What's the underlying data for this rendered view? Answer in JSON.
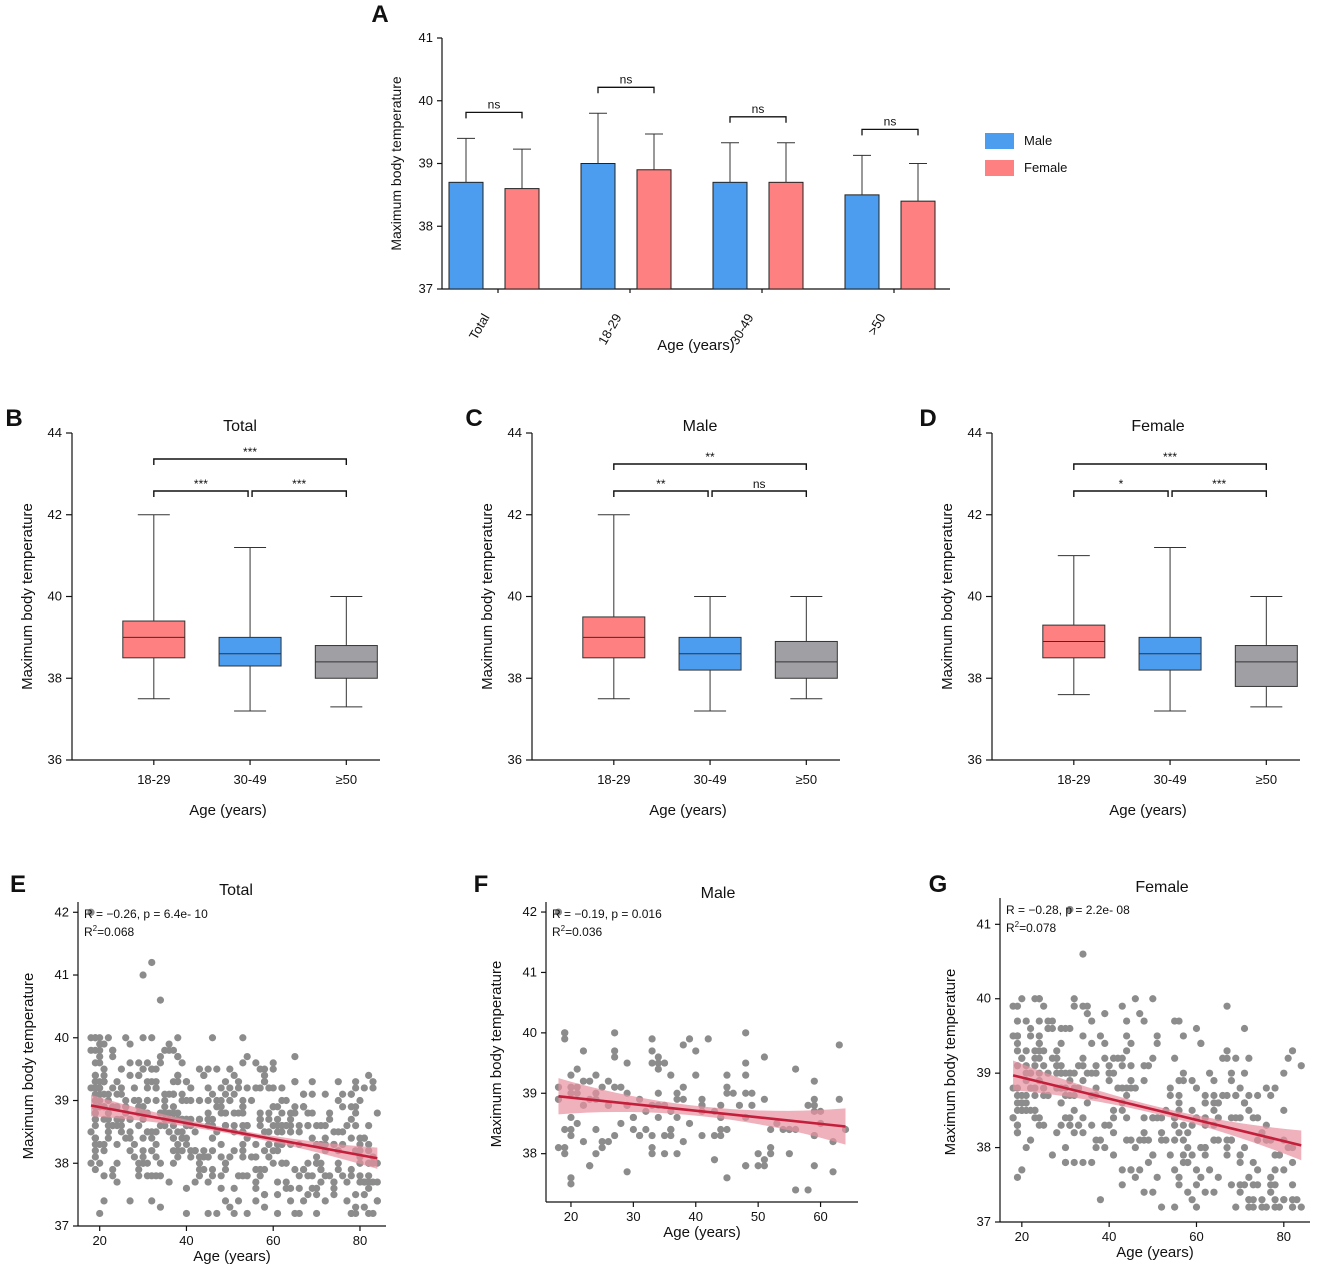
{
  "colors": {
    "male": "#4c9df0",
    "female": "#ff8080",
    "senior": "#a0a0a4",
    "point": "#8c8c8c",
    "line": "#c41e3a",
    "band": "#e8909f"
  },
  "chart_data": [
    {
      "id": "A",
      "type": "bar",
      "panel_label": "A",
      "xlabel": "Age (years)",
      "ylabel": "Maximum body temperature",
      "ylim": [
        37,
        41
      ],
      "yticks": [
        37,
        38,
        39,
        40,
        41
      ],
      "categories": [
        "Total",
        "18-29",
        "30-49",
        ">50"
      ],
      "series": [
        {
          "name": "Male",
          "values": [
            38.7,
            39.0,
            38.7,
            38.5
          ],
          "err_upper": [
            39.4,
            39.8,
            39.33,
            39.13
          ]
        },
        {
          "name": "Female",
          "values": [
            38.6,
            38.9,
            38.7,
            38.4
          ],
          "err_upper": [
            39.23,
            39.47,
            39.33,
            39.0
          ]
        }
      ],
      "significance": [
        "ns",
        "ns",
        "ns",
        "ns"
      ],
      "legend": [
        "Male",
        "Female"
      ],
      "legend_position": "right"
    },
    {
      "id": "B",
      "type": "box",
      "panel_label": "B",
      "title": "Total",
      "xlabel": "Age (years)",
      "ylabel": "Maximum body temperature",
      "ylim": [
        36,
        44
      ],
      "yticks": [
        36,
        38,
        40,
        42,
        44
      ],
      "categories": [
        "18-29",
        "30-49",
        "≥50"
      ],
      "boxes": [
        {
          "min": 37.5,
          "q1": 38.5,
          "median": 39.0,
          "q3": 39.4,
          "max": 42.0
        },
        {
          "min": 37.2,
          "q1": 38.3,
          "median": 38.6,
          "q3": 39.0,
          "max": 41.2
        },
        {
          "min": 37.3,
          "q1": 38.0,
          "median": 38.4,
          "q3": 38.8,
          "max": 40.0
        }
      ],
      "comparisons": [
        {
          "pair": "18-29 vs ≥50",
          "label": "***"
        },
        {
          "pair": "18-29 vs 30-49",
          "label": "***"
        },
        {
          "pair": "30-49 vs ≥50",
          "label": "***"
        }
      ]
    },
    {
      "id": "C",
      "type": "box",
      "panel_label": "C",
      "title": "Male",
      "xlabel": "Age (years)",
      "ylabel": "Maximum body temperature",
      "ylim": [
        36,
        44
      ],
      "yticks": [
        36,
        38,
        40,
        42,
        44
      ],
      "categories": [
        "18-29",
        "30-49",
        "≥50"
      ],
      "boxes": [
        {
          "min": 37.5,
          "q1": 38.5,
          "median": 39.0,
          "q3": 39.5,
          "max": 42.0
        },
        {
          "min": 37.2,
          "q1": 38.2,
          "median": 38.6,
          "q3": 39.0,
          "max": 40.0
        },
        {
          "min": 37.5,
          "q1": 38.0,
          "median": 38.4,
          "q3": 38.9,
          "max": 40.0
        }
      ],
      "comparisons": [
        {
          "pair": "18-29 vs ≥50",
          "label": "**"
        },
        {
          "pair": "18-29 vs 30-49",
          "label": "**"
        },
        {
          "pair": "30-49 vs ≥50",
          "label": "ns"
        }
      ]
    },
    {
      "id": "D",
      "type": "box",
      "panel_label": "D",
      "title": "Female",
      "xlabel": "Age (years)",
      "ylabel": "Maximum body temperature",
      "ylim": [
        36,
        44
      ],
      "yticks": [
        36,
        38,
        40,
        42,
        44
      ],
      "categories": [
        "18-29",
        "30-49",
        "≥50"
      ],
      "boxes": [
        {
          "min": 37.6,
          "q1": 38.5,
          "median": 38.9,
          "q3": 39.3,
          "max": 41.0
        },
        {
          "min": 37.2,
          "q1": 38.2,
          "median": 38.6,
          "q3": 39.0,
          "max": 41.2
        },
        {
          "min": 37.3,
          "q1": 37.8,
          "median": 38.4,
          "q3": 38.8,
          "max": 40.0
        }
      ],
      "comparisons": [
        {
          "pair": "18-29 vs ≥50",
          "label": "***"
        },
        {
          "pair": "18-29 vs 30-49",
          "label": "*"
        },
        {
          "pair": "30-49 vs ≥50",
          "label": "***"
        }
      ]
    },
    {
      "id": "E",
      "type": "scatter",
      "panel_label": "E",
      "title": "Total",
      "xlabel": "Age (years)",
      "ylabel": "Maximum body temperature",
      "xlim": [
        15,
        86
      ],
      "ylim": [
        37,
        42.1
      ],
      "xticks": [
        20,
        40,
        60,
        80
      ],
      "yticks": [
        37,
        38,
        39,
        40,
        41,
        42
      ],
      "age_range": [
        18,
        84
      ],
      "n_points": 560,
      "outliers": [
        [
          18,
          42.0
        ],
        [
          30,
          41.0
        ],
        [
          32,
          41.2
        ],
        [
          34,
          40.6
        ]
      ],
      "regression": {
        "x": [
          18,
          84
        ],
        "y": [
          38.92,
          38.08
        ],
        "ci_halfwidth_ends": 0.17,
        "ci_halfwidth_mid": 0.04
      },
      "stats": {
        "R": "R = −0.26, p = 6.4e- 10",
        "R2_label": "R",
        "R2_sup": "2",
        "R2_value": "=0.068"
      }
    },
    {
      "id": "F",
      "type": "scatter",
      "panel_label": "F",
      "title": "Male",
      "xlabel": "Age (years)",
      "ylabel": "Maximum body temperature",
      "xlim": [
        16,
        66
      ],
      "ylim": [
        37.2,
        42.1
      ],
      "xticks": [
        20,
        30,
        40,
        50,
        60
      ],
      "yticks": [
        38,
        39,
        40,
        41,
        42
      ],
      "age_range": [
        18,
        64
      ],
      "n_points": 160,
      "outliers": [
        [
          18,
          42.0
        ]
      ],
      "regression": {
        "x": [
          18,
          64
        ],
        "y": [
          38.95,
          38.45
        ],
        "ci_halfwidth_ends": 0.3,
        "ci_halfwidth_mid": 0.08
      },
      "stats": {
        "R": "R = −0.19, p = 0.016",
        "R2_label": "R",
        "R2_sup": "2",
        "R2_value": "=0.036"
      }
    },
    {
      "id": "G",
      "type": "scatter",
      "panel_label": "G",
      "title": "Female",
      "xlabel": "Age (years)",
      "ylabel": "Maximum body temperature",
      "xlim": [
        15,
        86
      ],
      "ylim": [
        37,
        41.3
      ],
      "xticks": [
        20,
        40,
        60,
        80
      ],
      "yticks": [
        37,
        38,
        39,
        40,
        41
      ],
      "age_range": [
        18,
        84
      ],
      "n_points": 400,
      "outliers": [
        [
          31,
          41.2
        ],
        [
          34,
          40.6
        ]
      ],
      "regression": {
        "x": [
          18,
          84
        ],
        "y": [
          38.97,
          38.03
        ],
        "ci_halfwidth_ends": 0.2,
        "ci_halfwidth_mid": 0.05
      },
      "stats": {
        "R": "R = −0.28, p = 2.2e- 08",
        "R2_label": "R",
        "R2_sup": "2",
        "R2_value": "=0.078"
      }
    }
  ]
}
